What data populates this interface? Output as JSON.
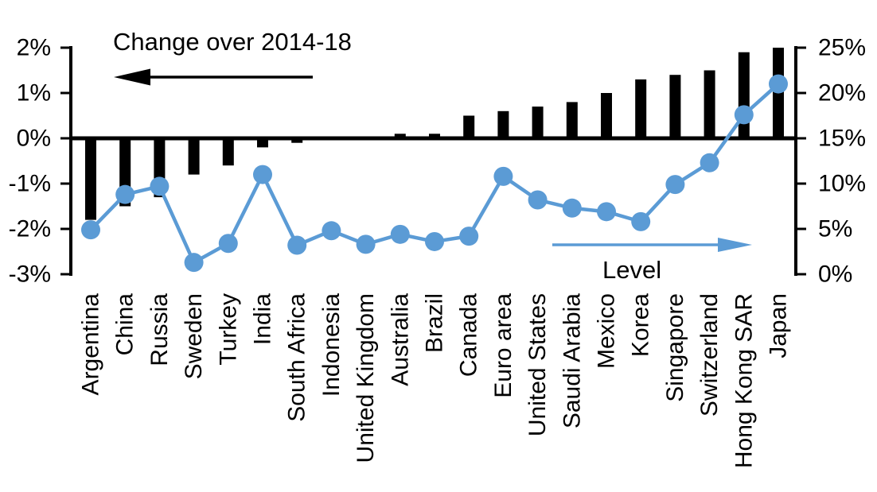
{
  "annotations": {
    "change_arrow_label": "Change over 2014-18",
    "level_arrow_label": "Level"
  },
  "colors": {
    "bar": "#000000",
    "line": "#5B9BD5",
    "axis": "#000000",
    "background": "#FFFFFF"
  },
  "axes": {
    "left": {
      "tick_labels": [
        "2%",
        "1%",
        "0%",
        "-1%",
        "-2%",
        "-3%"
      ],
      "tick_values": [
        2,
        1,
        0,
        -1,
        -2,
        -3
      ],
      "range": [
        -3,
        2
      ]
    },
    "right": {
      "tick_labels": [
        "25%",
        "20%",
        "15%",
        "10%",
        "5%",
        "0%"
      ],
      "tick_values": [
        25,
        20,
        15,
        10,
        5,
        0
      ],
      "range": [
        0,
        25
      ]
    }
  },
  "chart_data": {
    "type": "combo",
    "categories": [
      "Argentina",
      "China",
      "Russia",
      "Sweden",
      "Turkey",
      "India",
      "South Africa",
      "Indonesia",
      "United Kingdom",
      "Australia",
      "Brazil",
      "Canada",
      "Euro area",
      "United States",
      "Saudi Arabia",
      "Mexico",
      "Korea",
      "Singapore",
      "Switzerland",
      "Hong Kong SAR",
      "Japan"
    ],
    "series": [
      {
        "name": "Change over 2014-18",
        "type": "bar",
        "axis": "left",
        "unit": "% pts",
        "values": [
          -1.8,
          -1.5,
          -1.3,
          -0.8,
          -0.6,
          -0.2,
          -0.1,
          0.0,
          0.0,
          0.1,
          0.1,
          0.5,
          0.6,
          0.7,
          0.8,
          1.0,
          1.3,
          1.4,
          1.5,
          1.9,
          2.0
        ]
      },
      {
        "name": "Level",
        "type": "line",
        "axis": "right",
        "unit": "%",
        "values": [
          4.9,
          8.8,
          9.7,
          1.3,
          3.4,
          11.0,
          3.2,
          4.8,
          3.3,
          4.4,
          3.6,
          4.2,
          10.8,
          8.2,
          7.3,
          6.9,
          5.8,
          9.9,
          12.3,
          17.6,
          21.0
        ]
      }
    ],
    "left_ylim": [
      -3,
      2
    ],
    "right_ylim": [
      0,
      25
    ],
    "grid": false,
    "legend_position": "in-plot arrows"
  }
}
